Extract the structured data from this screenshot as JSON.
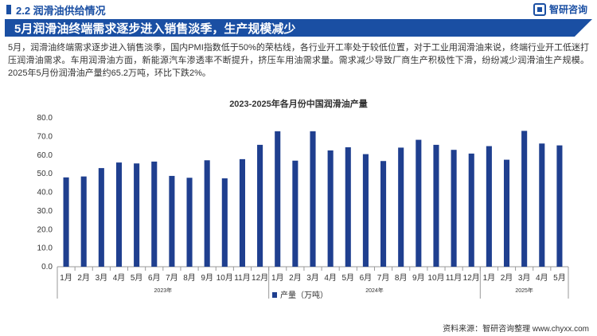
{
  "header": {
    "section": "2.2 润滑油供给情况",
    "logo": "智研咨询"
  },
  "headline": "5月润滑油终端需求逐步进入销售淡季，生产规模减少",
  "paragraph": "5月，润滑油终端需求逐步进入销售淡季，国内PMI指数低于50%的荣枯线，各行业开工率处于较低位置，对于工业用润滑油来说，终端行业开工低迷打压润滑油需求。车用润滑油方面，新能源汽车渗透率不断提升，挤压车用油需求量。需求减少导致厂商生产积极性下滑，纷纷减少润滑油生产规模。2025年5月份润滑油产量约65.2万吨，环比下跌2%。",
  "source": "资料来源：智研咨询整理  www.chyxx.com",
  "colors": {
    "brand": "#1a4fa3",
    "bar": "#1f3f8f"
  },
  "chart_data": {
    "type": "bar",
    "title": "2023-2025年各月份中国润滑油产量",
    "ylim": [
      0,
      80
    ],
    "yticks": [
      "0.0",
      "10.0",
      "20.0",
      "30.0",
      "40.0",
      "50.0",
      "60.0",
      "70.0",
      "80.0"
    ],
    "grid": false,
    "legend_position": "bottom",
    "groups": [
      {
        "label": "2023年",
        "months": [
          "1月",
          "2月",
          "3月",
          "4月",
          "5月",
          "6月",
          "7月",
          "8月",
          "9月",
          "10月",
          "11月",
          "12月"
        ]
      },
      {
        "label": "2024年",
        "months": [
          "1月",
          "2月",
          "3月",
          "4月",
          "5月",
          "6月",
          "7月",
          "8月",
          "9月",
          "10月",
          "11月",
          "12月"
        ]
      },
      {
        "label": "2025年",
        "months": [
          "1月",
          "2月",
          "3月",
          "4月",
          "5月"
        ]
      }
    ],
    "series": [
      {
        "name": "产量（万吨）",
        "values": [
          48,
          48.5,
          53,
          56,
          55.5,
          56.5,
          48.8,
          47.8,
          57.2,
          47.5,
          57.8,
          65.5,
          72.8,
          57,
          72.8,
          62.5,
          64.2,
          60.5,
          56.8,
          64,
          68.2,
          65.5,
          62.8,
          60.8,
          64.8,
          57.5,
          73,
          66.2,
          65.2
        ]
      }
    ]
  }
}
